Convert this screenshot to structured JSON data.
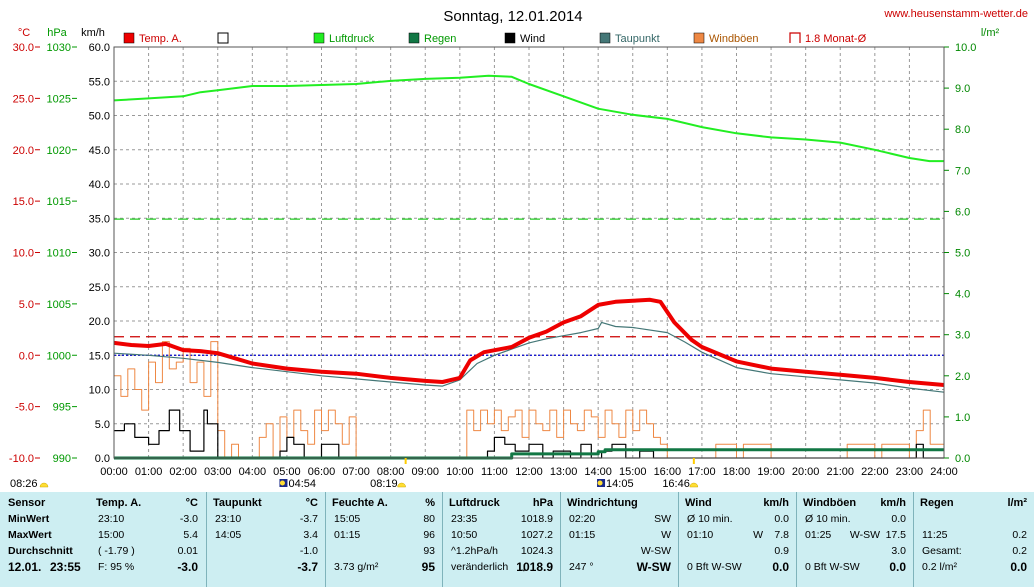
{
  "title": "Sonntag, 12.01.2014",
  "website": "www.heusenstamm-wetter.de",
  "axes": {
    "temp": {
      "unit": "°C",
      "ticks": [
        "30.0",
        "25.0",
        "20.0",
        "15.0",
        "10.0",
        "5.0",
        "0.0",
        "-5.0",
        "-10.0"
      ],
      "color": "#cc0000"
    },
    "pressure": {
      "unit": "hPa",
      "ticks": [
        "1030",
        "1025",
        "1020",
        "1015",
        "1010",
        "1005",
        "1000",
        "995",
        "990"
      ],
      "color": "#009900"
    },
    "wind": {
      "unit": "km/h",
      "ticks": [
        "60.0",
        "55.0",
        "50.0",
        "45.0",
        "40.0",
        "35.0",
        "30.0",
        "25.0",
        "20.0",
        "15.0",
        "10.0",
        "5.0",
        "0.0"
      ],
      "color": "#000000"
    },
    "rain": {
      "unit": "l/m²",
      "ticks": [
        "10.0",
        "9.0",
        "8.0",
        "7.0",
        "6.0",
        "5.0",
        "4.0",
        "3.0",
        "2.0",
        "1.0",
        "0.0"
      ],
      "color": "#008800"
    },
    "x_ticks": [
      "00:00",
      "01:00",
      "02:00",
      "03:00",
      "04:00",
      "05:00",
      "06:00",
      "07:00",
      "08:00",
      "09:00",
      "10:00",
      "11:00",
      "12:00",
      "13:00",
      "14:00",
      "15:00",
      "16:00",
      "17:00",
      "18:00",
      "19:00",
      "20:00",
      "21:00",
      "22:00",
      "23:00",
      "24:00"
    ]
  },
  "legend": [
    {
      "label": "Temp. A.",
      "color": "#ee0000",
      "style": "filled"
    },
    {
      "label": "",
      "color": "#000000",
      "style": "empty"
    },
    {
      "label": "Luftdruck",
      "color": "#22ee22",
      "style": "filled"
    },
    {
      "label": "Regen",
      "color": "#117744",
      "style": "filled"
    },
    {
      "label": "Wind",
      "color": "#000000",
      "style": "filled"
    },
    {
      "label": "Taupunkt",
      "color": "#447777",
      "style": "filled"
    },
    {
      "label": "Windböen",
      "color": "#ee8844",
      "style": "filled"
    },
    {
      "label": "1.8 Monat-Ø",
      "color": "#cc0000",
      "style": "bracket"
    }
  ],
  "time_marks": {
    "sunrise": "08:26",
    "sunset": "16:46",
    "moonrise": "04:54",
    "moonset": "14:05",
    "daylight_start": "08:19"
  },
  "chart_data": {
    "type": "line",
    "title": "Sonntag, 12.01.2014",
    "x_unit": "hours",
    "xlim": [
      0,
      24
    ],
    "series": [
      {
        "name": "Temp. A.",
        "axis": "temp",
        "color": "#ee0000",
        "x": [
          0,
          0.5,
          1,
          1.5,
          2,
          2.5,
          3,
          3.5,
          4,
          5,
          6,
          7,
          8,
          9,
          9.5,
          10,
          10.3,
          10.7,
          11.5,
          12,
          12.5,
          13,
          13.5,
          14,
          14.5,
          15,
          15.5,
          15.8,
          16.2,
          16.7,
          17,
          18,
          19,
          20,
          21,
          22,
          23,
          24
        ],
        "y": [
          1.2,
          1.0,
          0.9,
          1.1,
          0.5,
          0.4,
          0.2,
          -0.3,
          -0.8,
          -1.3,
          -1.6,
          -1.8,
          -2.2,
          -2.5,
          -2.6,
          -2.2,
          -0.5,
          0.3,
          0.8,
          1.7,
          2.3,
          3.2,
          3.8,
          4.9,
          5.2,
          5.3,
          5.4,
          5.2,
          3.2,
          1.5,
          0.8,
          -0.6,
          -1.3,
          -1.6,
          -1.9,
          -2.2,
          -2.6,
          -2.9
        ]
      },
      {
        "name": "Taupunkt",
        "axis": "temp",
        "color": "#447777",
        "x": [
          0,
          1,
          2,
          3,
          4,
          5,
          6,
          7,
          8,
          9,
          9.5,
          10,
          10.5,
          11,
          11.5,
          12,
          12.5,
          13,
          13.5,
          14,
          14.1,
          14.5,
          15,
          16,
          16.5,
          17,
          18,
          19,
          20,
          21,
          22,
          23,
          24
        ],
        "y": [
          0.2,
          0,
          -0.3,
          -0.7,
          -1.2,
          -1.6,
          -2,
          -2.3,
          -2.6,
          -2.9,
          -3.0,
          -2.4,
          -0.8,
          0,
          0.6,
          1.2,
          1.6,
          1.9,
          2.2,
          2.6,
          3.2,
          2.8,
          2.7,
          2.2,
          1.3,
          0.3,
          -1.2,
          -1.8,
          -2.1,
          -2.4,
          -2.7,
          -3.2,
          -3.6
        ]
      },
      {
        "name": "Luftdruck",
        "axis": "pressure",
        "color": "#22ee22",
        "x": [
          0,
          1,
          2,
          2.5,
          3,
          4,
          5,
          6,
          7,
          8,
          9,
          10,
          10.83,
          11.5,
          12,
          13,
          14,
          15,
          16,
          17,
          18,
          19,
          20,
          21,
          22,
          23,
          23.58,
          24
        ],
        "y": [
          1024.8,
          1025.0,
          1025.2,
          1025.6,
          1025.8,
          1026.2,
          1026.2,
          1026.3,
          1026.4,
          1026.7,
          1026.9,
          1027.0,
          1027.2,
          1027.1,
          1026.4,
          1025.2,
          1024.0,
          1023.4,
          1023.0,
          1022.2,
          1021.6,
          1021.2,
          1021.0,
          1020.7,
          1020.0,
          1019.2,
          1018.9,
          1018.9
        ]
      },
      {
        "name": "Wind",
        "axis": "wind",
        "color": "#000000",
        "x": [
          0,
          0.3,
          0.6,
          1,
          1.3,
          1.6,
          1.9,
          2.2,
          2.6,
          2.7,
          3.0,
          3.2,
          4.5,
          4.8,
          5.0,
          5.2,
          5.5,
          6.0,
          6.5,
          7.0,
          10,
          10.5,
          10.8,
          11.0,
          11.3,
          11.6,
          12.0,
          12.4,
          12.7,
          13.2,
          13.5,
          13.8,
          14.1,
          14.4,
          14.8,
          15.2,
          15.6,
          16,
          23.0,
          23.2,
          23.4,
          24
        ],
        "y": [
          4,
          5,
          3,
          2,
          4,
          7,
          4,
          1,
          7,
          5,
          0,
          0,
          0,
          1,
          3,
          2,
          0,
          2,
          0,
          0,
          0,
          0,
          1,
          3,
          2,
          1,
          2,
          0,
          1,
          0,
          2,
          0,
          1,
          2,
          0,
          1,
          0,
          0,
          0,
          2,
          0,
          0
        ]
      },
      {
        "name": "Windböen",
        "axis": "wind",
        "color": "#ee8844",
        "x": [
          0,
          0.2,
          0.4,
          0.6,
          0.8,
          1.0,
          1.2,
          1.4,
          1.6,
          1.8,
          2.0,
          2.2,
          2.4,
          2.6,
          2.8,
          3.0,
          3.2,
          3.4,
          3.6,
          4.0,
          4.2,
          4.4,
          4.6,
          4.8,
          5.0,
          5.2,
          5.4,
          5.6,
          5.8,
          6.0,
          6.2,
          6.4,
          6.6,
          6.8,
          7.0,
          10.0,
          10.2,
          10.4,
          10.6,
          10.8,
          11.0,
          11.2,
          11.4,
          11.6,
          11.8,
          12.0,
          12.2,
          12.4,
          12.6,
          12.8,
          13.0,
          13.2,
          13.4,
          13.6,
          13.8,
          14.0,
          14.2,
          14.4,
          14.6,
          14.8,
          15.0,
          15.2,
          15.4,
          15.6,
          15.8,
          16.0,
          17.2,
          17.4,
          18.0,
          18.2,
          19.0,
          21.0,
          21.2,
          22.0,
          22.2,
          23.0,
          23.2,
          23.4,
          23.6,
          24
        ],
        "y": [
          12,
          9,
          13,
          10,
          7,
          14,
          11,
          17,
          13,
          14,
          16,
          11,
          14,
          9,
          17,
          4,
          0,
          2,
          0,
          0,
          3,
          5,
          0,
          6,
          3,
          7,
          4,
          2,
          7,
          4,
          7,
          5,
          2,
          6,
          0,
          0,
          7,
          4,
          7,
          5,
          7,
          4,
          6,
          7,
          3,
          7,
          5,
          4,
          7,
          3,
          7,
          5,
          4,
          7,
          6,
          3,
          7,
          5,
          3,
          7,
          4,
          7,
          5,
          3,
          2,
          0,
          0,
          2,
          0,
          2,
          0,
          0,
          2,
          0,
          2,
          0,
          4,
          7,
          2,
          0
        ]
      },
      {
        "name": "Regen",
        "axis": "rain",
        "color": "#117744",
        "x": [
          0,
          11.4,
          11.5,
          13.5,
          14.0,
          14.2,
          16.0,
          24
        ],
        "y": [
          0,
          0,
          0.1,
          0.1,
          0.15,
          0.2,
          0.2,
          0.2
        ]
      }
    ],
    "reference_lines": [
      {
        "name": "1.8 Monat-Ø",
        "axis": "temp",
        "value": 1.8,
        "color": "#cc0000",
        "style": "dashed"
      },
      {
        "name": "Luftdruck level",
        "axis": "pressure",
        "value": 1013.25,
        "color": "#22cc22",
        "style": "dashed"
      },
      {
        "name": "Frost line",
        "axis": "temp",
        "value": 0.0,
        "color": "#0000cc",
        "style": "dotted"
      }
    ]
  },
  "table": {
    "row_labels": {
      "sensor": "Sensor",
      "min": "MinWert",
      "max": "MaxWert",
      "avg": "Durchschnitt",
      "now_date": "12.01.",
      "now_time": "23:55"
    },
    "cols": [
      {
        "name": "Temp. A.",
        "unit": "°C",
        "min": [
          "23:10",
          "",
          "-3.0"
        ],
        "max": [
          "15:00",
          "",
          "5.4"
        ],
        "avg": [
          "( -1.79 )",
          "",
          "0.01"
        ],
        "now": [
          "F: 95 %",
          "",
          "-3.0"
        ]
      },
      {
        "name": "Taupunkt",
        "unit": "°C",
        "min": [
          "23:10",
          "",
          "-3.7"
        ],
        "max": [
          "14:05",
          "",
          "3.4"
        ],
        "avg": [
          "",
          "",
          "-1.0"
        ],
        "now": [
          "",
          "",
          "-3.7"
        ]
      },
      {
        "name": "Feuchte A.",
        "unit": "%",
        "min": [
          "15:05",
          "",
          "80"
        ],
        "max": [
          "01:15",
          "",
          "96"
        ],
        "avg": [
          "",
          "",
          "93"
        ],
        "now": [
          "3.73 g/m²",
          "",
          "95"
        ]
      },
      {
        "name": "Luftdruck",
        "unit": "hPa",
        "min": [
          "23:35",
          "",
          "1018.9"
        ],
        "max": [
          "10:50",
          "",
          "1027.2"
        ],
        "avg": [
          "^1.2hPa/h",
          "",
          "1024.3"
        ],
        "now": [
          "veränderlich",
          "↓",
          "1018.9"
        ]
      },
      {
        "name": "Windrichtung",
        "unit": "",
        "min": [
          "02:20",
          "",
          "SW"
        ],
        "max": [
          "01:15",
          "",
          "W"
        ],
        "avg": [
          "",
          "",
          "W-SW"
        ],
        "now": [
          "247 °",
          "",
          "W-SW"
        ]
      },
      {
        "name": "Wind",
        "unit": "km/h",
        "min": [
          "Ø 10 min.",
          "",
          "0.0"
        ],
        "max": [
          "01:10",
          "W",
          "7.8"
        ],
        "avg": [
          "",
          "",
          "0.9"
        ],
        "now": [
          "0 Bft W-SW",
          "",
          "0.0"
        ]
      },
      {
        "name": "Windböen",
        "unit": "km/h",
        "min": [
          "Ø 10 min.",
          "",
          "0.0"
        ],
        "max": [
          "01:25",
          "W-SW",
          "17.5"
        ],
        "avg": [
          "",
          "",
          "3.0"
        ],
        "now": [
          "0 Bft W-SW",
          "",
          "0.0"
        ]
      },
      {
        "name": "Regen",
        "unit": "l/m²",
        "min": [
          "",
          "",
          ""
        ],
        "max": [
          "11:25",
          "",
          "0.2"
        ],
        "avg": [
          "Gesamt:",
          "",
          "0.2"
        ],
        "now": [
          "0.2 l/m²",
          "",
          "0.0"
        ]
      }
    ]
  }
}
